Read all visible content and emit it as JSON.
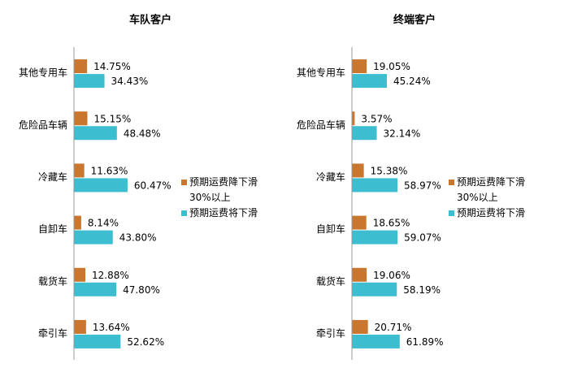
{
  "chart_data": [
    {
      "type": "bar",
      "orientation": "horizontal",
      "title": "车队客户",
      "categories": [
        "其他专用车",
        "危险品车辆",
        "冷藏车",
        "自卸车",
        "载货车",
        "牵引车"
      ],
      "series": [
        {
          "name": "预期运费降下滑30%以上",
          "color": "#c9772f",
          "values": [
            14.75,
            15.15,
            11.63,
            8.14,
            12.88,
            13.64
          ],
          "value_labels": [
            "14.75%",
            "15.15%",
            "11.63%",
            "8.14%",
            "12.88%",
            "13.64%"
          ]
        },
        {
          "name": "预期运费将下滑",
          "color": "#3dbdd0",
          "values": [
            34.43,
            48.48,
            60.47,
            43.8,
            47.8,
            52.62
          ],
          "value_labels": [
            "34.43%",
            "48.48%",
            "60.47%",
            "43.80%",
            "47.80%",
            "52.62%"
          ]
        }
      ],
      "xlim": [
        0,
        100
      ],
      "legend": "right"
    },
    {
      "type": "bar",
      "orientation": "horizontal",
      "title": "终端客户",
      "categories": [
        "其他专用车",
        "危险品车辆",
        "冷藏车",
        "自卸车",
        "载货车",
        "牵引车"
      ],
      "series": [
        {
          "name": "预期运费降下滑30%以上",
          "color": "#c9772f",
          "values": [
            19.05,
            3.57,
            15.38,
            18.65,
            19.06,
            20.71
          ],
          "value_labels": [
            "19.05%",
            "3.57%",
            "15.38%",
            "18.65%",
            "19.06%",
            "20.71%"
          ]
        },
        {
          "name": "预期运费将下滑",
          "color": "#3dbdd0",
          "values": [
            45.24,
            32.14,
            58.97,
            59.07,
            58.19,
            61.89
          ],
          "value_labels": [
            "45.24%",
            "32.14%",
            "58.97%",
            "59.07%",
            "58.19%",
            "61.89%"
          ]
        }
      ],
      "xlim": [
        0,
        100
      ],
      "legend": "right"
    }
  ]
}
